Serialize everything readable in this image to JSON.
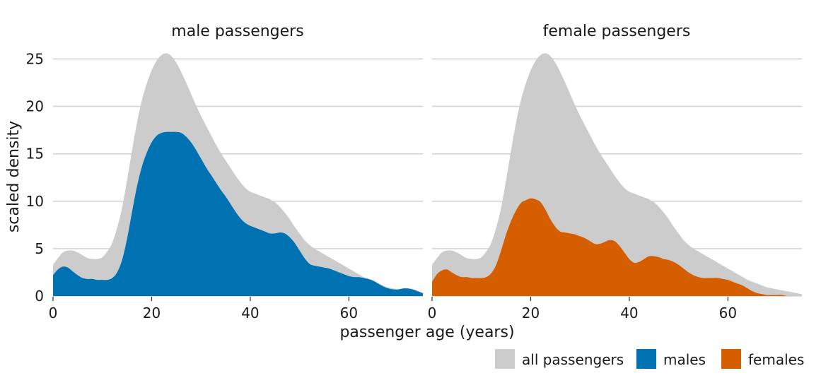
{
  "chart_data": {
    "type": "area",
    "ylabel": "scaled density",
    "xlabel": "passenger age (years)",
    "xlim": [
      0,
      75
    ],
    "ylim": [
      0,
      26
    ],
    "x_ticks": [
      0,
      20,
      40,
      60
    ],
    "y_ticks": [
      0,
      5,
      10,
      15,
      20,
      25
    ],
    "grid": "horizontal",
    "legend_position": "bottom-right",
    "colors": {
      "all": "#cccccc",
      "males": "#0072b2",
      "females": "#d55e00"
    },
    "legend": [
      {
        "key": "all",
        "label": "all passengers"
      },
      {
        "key": "males",
        "label": "males"
      },
      {
        "key": "females",
        "label": "females"
      }
    ],
    "panels": [
      {
        "title": "male passengers",
        "series": [
          {
            "name": "all passengers",
            "key": "all",
            "x": [
              0,
              1,
              2,
              3,
              4,
              5,
              6,
              7,
              8,
              9,
              10,
              11,
              12,
              13,
              14,
              15,
              16,
              17,
              18,
              19,
              20,
              21,
              22,
              23,
              24,
              25,
              26,
              27,
              28,
              29,
              30,
              31,
              32,
              33,
              34,
              35,
              36,
              37,
              38,
              39,
              40,
              41,
              42,
              43,
              44,
              45,
              46,
              47,
              48,
              49,
              50,
              51,
              52,
              53,
              54,
              55,
              56,
              57,
              58,
              59,
              60,
              61,
              62,
              63,
              64,
              65,
              66,
              67,
              68,
              69,
              70,
              71,
              72,
              73,
              74,
              75
            ],
            "y": [
              3.3,
              4.0,
              4.6,
              4.8,
              4.8,
              4.6,
              4.3,
              4.0,
              3.9,
              3.9,
              4.1,
              4.7,
              5.6,
              7.2,
              9.3,
              12.2,
              15.3,
              18.2,
              20.6,
              22.4,
              23.8,
              24.8,
              25.4,
              25.6,
              25.3,
              24.6,
              23.6,
              22.5,
              21.3,
              20.1,
              19.0,
              18.0,
              17.0,
              16.0,
              15.1,
              14.3,
              13.5,
              12.7,
              12.0,
              11.4,
              11.0,
              10.8,
              10.6,
              10.4,
              10.2,
              9.9,
              9.4,
              8.8,
              8.1,
              7.3,
              6.6,
              5.9,
              5.4,
              5.0,
              4.7,
              4.4,
              4.1,
              3.8,
              3.5,
              3.2,
              2.9,
              2.6,
              2.3,
              2.0,
              1.7,
              1.5,
              1.3,
              1.1,
              0.9,
              0.8,
              0.7,
              0.6,
              0.5,
              0.4,
              0.3,
              0.2
            ]
          },
          {
            "name": "males",
            "key": "males",
            "x": [
              0,
              1,
              2,
              3,
              4,
              5,
              6,
              7,
              8,
              9,
              10,
              11,
              12,
              13,
              14,
              15,
              16,
              17,
              18,
              19,
              20,
              21,
              22,
              23,
              24,
              25,
              26,
              27,
              28,
              29,
              30,
              31,
              32,
              33,
              34,
              35,
              36,
              37,
              38,
              39,
              40,
              41,
              42,
              43,
              44,
              45,
              46,
              47,
              48,
              49,
              50,
              51,
              52,
              53,
              54,
              55,
              56,
              57,
              58,
              59,
              60,
              61,
              62,
              63,
              64,
              65,
              66,
              67,
              68,
              69,
              70,
              71,
              72,
              73,
              74,
              75
            ],
            "y": [
              2.2,
              2.8,
              3.1,
              3.0,
              2.6,
              2.2,
              1.9,
              1.8,
              1.8,
              1.7,
              1.7,
              1.7,
              1.9,
              2.5,
              3.8,
              6.0,
              8.8,
              11.5,
              13.6,
              15.1,
              16.2,
              16.9,
              17.2,
              17.3,
              17.3,
              17.3,
              17.2,
              16.8,
              16.2,
              15.4,
              14.5,
              13.6,
              12.8,
              12.0,
              11.2,
              10.5,
              9.7,
              8.9,
              8.2,
              7.7,
              7.4,
              7.2,
              7.0,
              6.8,
              6.6,
              6.6,
              6.7,
              6.6,
              6.2,
              5.6,
              4.8,
              4.0,
              3.4,
              3.2,
              3.1,
              3.0,
              2.9,
              2.7,
              2.5,
              2.3,
              2.1,
              2.0,
              2.0,
              1.9,
              1.8,
              1.6,
              1.3,
              1.0,
              0.8,
              0.7,
              0.7,
              0.8,
              0.8,
              0.7,
              0.5,
              0.3
            ]
          }
        ]
      },
      {
        "title": "female passengers",
        "series": [
          {
            "name": "all passengers",
            "key": "all",
            "x": [
              0,
              1,
              2,
              3,
              4,
              5,
              6,
              7,
              8,
              9,
              10,
              11,
              12,
              13,
              14,
              15,
              16,
              17,
              18,
              19,
              20,
              21,
              22,
              23,
              24,
              25,
              26,
              27,
              28,
              29,
              30,
              31,
              32,
              33,
              34,
              35,
              36,
              37,
              38,
              39,
              40,
              41,
              42,
              43,
              44,
              45,
              46,
              47,
              48,
              49,
              50,
              51,
              52,
              53,
              54,
              55,
              56,
              57,
              58,
              59,
              60,
              61,
              62,
              63,
              64,
              65,
              66,
              67,
              68,
              69,
              70,
              71,
              72,
              73,
              74,
              75
            ],
            "y": [
              3.3,
              4.0,
              4.6,
              4.8,
              4.8,
              4.6,
              4.3,
              4.0,
              3.9,
              3.9,
              4.1,
              4.7,
              5.6,
              7.2,
              9.3,
              12.2,
              15.3,
              18.2,
              20.6,
              22.4,
              23.8,
              24.8,
              25.4,
              25.6,
              25.3,
              24.6,
              23.6,
              22.5,
              21.3,
              20.1,
              19.0,
              18.0,
              17.0,
              16.0,
              15.1,
              14.3,
              13.5,
              12.7,
              12.0,
              11.4,
              11.0,
              10.8,
              10.6,
              10.4,
              10.2,
              9.9,
              9.4,
              8.8,
              8.1,
              7.3,
              6.6,
              5.9,
              5.4,
              5.0,
              4.7,
              4.4,
              4.1,
              3.8,
              3.5,
              3.2,
              2.9,
              2.6,
              2.3,
              2.0,
              1.7,
              1.5,
              1.3,
              1.1,
              0.9,
              0.8,
              0.7,
              0.6,
              0.5,
              0.4,
              0.3,
              0.2
            ]
          },
          {
            "name": "females",
            "key": "females",
            "x": [
              0,
              1,
              2,
              3,
              4,
              5,
              6,
              7,
              8,
              9,
              10,
              11,
              12,
              13,
              14,
              15,
              16,
              17,
              18,
              19,
              20,
              21,
              22,
              23,
              24,
              25,
              26,
              27,
              28,
              29,
              30,
              31,
              32,
              33,
              34,
              35,
              36,
              37,
              38,
              39,
              40,
              41,
              42,
              43,
              44,
              45,
              46,
              47,
              48,
              49,
              50,
              51,
              52,
              53,
              54,
              55,
              56,
              57,
              58,
              59,
              60,
              61,
              62,
              63,
              64,
              65,
              66,
              67,
              68,
              69,
              70,
              71,
              72,
              73,
              74,
              75
            ],
            "y": [
              1.5,
              2.3,
              2.7,
              2.8,
              2.5,
              2.2,
              2.0,
              2.0,
              1.9,
              1.9,
              1.9,
              2.0,
              2.4,
              3.3,
              4.8,
              6.5,
              7.9,
              9.0,
              9.8,
              10.1,
              10.3,
              10.2,
              9.9,
              9.1,
              8.1,
              7.3,
              6.8,
              6.7,
              6.6,
              6.5,
              6.3,
              6.1,
              5.8,
              5.5,
              5.5,
              5.7,
              5.9,
              5.8,
              5.3,
              4.6,
              3.9,
              3.5,
              3.6,
              3.9,
              4.2,
              4.2,
              4.1,
              3.9,
              3.8,
              3.6,
              3.3,
              2.9,
              2.5,
              2.2,
              2.0,
              1.9,
              1.9,
              1.9,
              1.9,
              1.8,
              1.7,
              1.5,
              1.3,
              1.1,
              0.8,
              0.5,
              0.3,
              0.2,
              0.1,
              0.1,
              0.1,
              0.1,
              0.0,
              0.0,
              0.0,
              0.0
            ]
          }
        ]
      }
    ]
  }
}
